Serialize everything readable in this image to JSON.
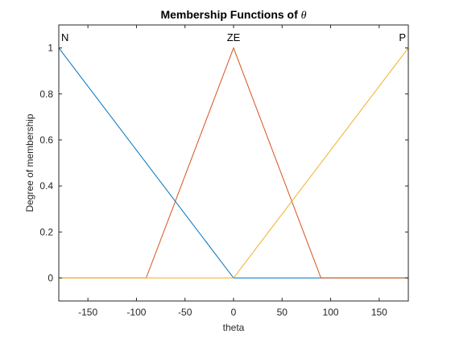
{
  "chart_data": {
    "type": "line",
    "title": "Membership Functions of ",
    "title_symbol": "θ",
    "xlabel": "theta",
    "ylabel": "Degree of membership",
    "xlim": [
      -180,
      180
    ],
    "ylim": [
      -0.1,
      1.1
    ],
    "xticks": [
      -150,
      -100,
      -50,
      0,
      50,
      100,
      150
    ],
    "xtick_labels": [
      "-150",
      "-100",
      "-50",
      "0",
      "50",
      "100",
      "150"
    ],
    "yticks": [
      0,
      0.2,
      0.4,
      0.6,
      0.8,
      1
    ],
    "ytick_labels": [
      "0",
      "0.2",
      "0.4",
      "0.6",
      "0.8",
      "1"
    ],
    "grid": false,
    "box": true,
    "series": [
      {
        "name": "N",
        "color": "#0072BD",
        "x": [
          -180,
          0,
          180
        ],
        "y": [
          1,
          0,
          0
        ],
        "label_x": -180
      },
      {
        "name": "ZE",
        "color": "#D95319",
        "x": [
          -180,
          -90,
          0,
          90,
          180
        ],
        "y": [
          0,
          0,
          1,
          0,
          0
        ],
        "label_x": 0
      },
      {
        "name": "P",
        "color": "#EDB120",
        "x": [
          -180,
          0,
          180
        ],
        "y": [
          0,
          0,
          1
        ],
        "label_x": 180
      }
    ]
  }
}
